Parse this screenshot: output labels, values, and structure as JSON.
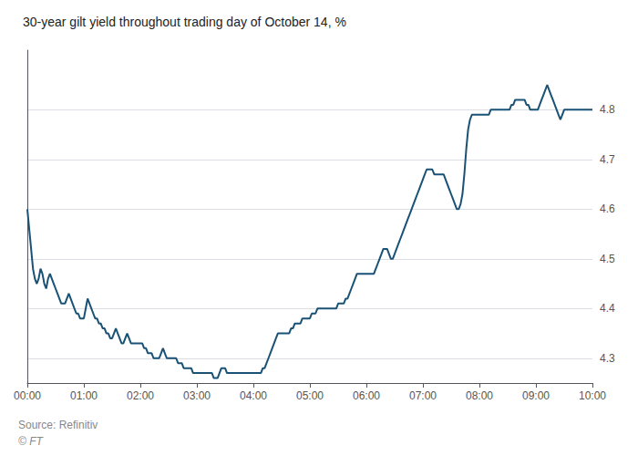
{
  "chart_data": {
    "type": "line",
    "title": "30-year gilt yield throughout trading day of October 14, %",
    "annotations": [
      "Source: Refinitiv",
      "© FT"
    ],
    "color": "#1a5276",
    "grid": true,
    "xlim": [
      0,
      600
    ],
    "xticks": [
      {
        "value": 0,
        "label": "00:00"
      },
      {
        "value": 60,
        "label": "01:00"
      },
      {
        "value": 120,
        "label": "02:00"
      },
      {
        "value": 180,
        "label": "03:00"
      },
      {
        "value": 240,
        "label": "04:00"
      },
      {
        "value": 300,
        "label": "05:00"
      },
      {
        "value": 360,
        "label": "06:00"
      },
      {
        "value": 420,
        "label": "07:00"
      },
      {
        "value": 480,
        "label": "08:00"
      },
      {
        "value": 540,
        "label": "09:00"
      },
      {
        "value": 600,
        "label": "10:00"
      }
    ],
    "ylim": [
      4.25,
      4.92
    ],
    "yticks": [
      4.3,
      4.4,
      4.5,
      4.6,
      4.7,
      4.8
    ],
    "x": [
      0,
      2,
      4,
      6,
      8,
      10,
      12,
      14,
      16,
      18,
      20,
      22,
      24,
      26,
      28,
      30,
      32,
      34,
      36,
      38,
      40,
      42,
      44,
      46,
      48,
      50,
      52,
      54,
      56,
      58,
      60,
      62,
      64,
      66,
      68,
      70,
      72,
      74,
      76,
      78,
      80,
      82,
      84,
      86,
      88,
      90,
      92,
      94,
      96,
      98,
      100,
      102,
      104,
      106,
      108,
      110,
      112,
      114,
      116,
      118,
      120,
      122,
      124,
      126,
      128,
      130,
      132,
      134,
      136,
      138,
      140,
      142,
      144,
      146,
      148,
      150,
      152,
      154,
      156,
      158,
      160,
      162,
      164,
      166,
      168,
      170,
      172,
      174,
      176,
      178,
      180,
      182,
      184,
      186,
      188,
      190,
      192,
      194,
      196,
      198,
      200,
      202,
      204,
      206,
      208,
      210,
      212,
      214,
      216,
      218,
      220,
      222,
      224,
      226,
      228,
      230,
      232,
      234,
      236,
      238,
      240,
      242,
      244,
      246,
      248,
      250,
      252,
      254,
      256,
      258,
      260,
      262,
      264,
      266,
      268,
      270,
      272,
      274,
      276,
      278,
      280,
      282,
      284,
      286,
      288,
      290,
      292,
      294,
      296,
      298,
      300,
      302,
      304,
      306,
      308,
      310,
      312,
      314,
      316,
      318,
      320,
      322,
      324,
      326,
      328,
      330,
      332,
      334,
      336,
      338,
      340,
      342,
      344,
      346,
      348,
      350,
      352,
      354,
      356,
      358,
      360,
      362,
      364,
      366,
      368,
      370,
      372,
      374,
      376,
      378,
      380,
      382,
      384,
      386,
      388,
      390,
      392,
      394,
      396,
      398,
      400,
      402,
      404,
      406,
      408,
      410,
      412,
      414,
      416,
      418,
      420,
      422,
      424,
      426,
      428,
      430,
      432,
      434,
      436,
      438,
      440,
      442,
      444,
      446,
      448,
      450,
      452,
      454,
      456,
      458,
      460,
      462,
      464,
      466,
      468,
      470,
      472,
      474,
      476,
      478,
      480,
      482,
      484,
      486,
      488,
      490,
      492,
      494,
      496,
      498,
      500,
      502,
      504,
      506,
      508,
      510,
      512,
      514,
      516,
      518,
      520,
      522,
      524,
      526,
      528,
      530,
      532,
      534,
      536,
      538,
      540,
      542,
      544,
      546,
      548,
      550,
      552,
      554,
      556,
      558,
      560,
      562,
      564,
      566,
      568,
      570,
      572,
      574,
      576,
      578,
      580,
      582,
      584,
      586,
      588,
      590,
      592,
      594,
      596,
      598,
      600
    ],
    "values": [
      4.6,
      4.56,
      4.52,
      4.48,
      4.46,
      4.45,
      4.46,
      4.48,
      4.47,
      4.45,
      4.44,
      4.46,
      4.47,
      4.46,
      4.45,
      4.44,
      4.43,
      4.42,
      4.41,
      4.41,
      4.41,
      4.42,
      4.43,
      4.42,
      4.41,
      4.4,
      4.39,
      4.39,
      4.38,
      4.38,
      4.38,
      4.4,
      4.42,
      4.41,
      4.4,
      4.39,
      4.38,
      4.38,
      4.37,
      4.37,
      4.36,
      4.36,
      4.35,
      4.35,
      4.34,
      4.34,
      4.35,
      4.36,
      4.35,
      4.34,
      4.33,
      4.33,
      4.34,
      4.35,
      4.34,
      4.33,
      4.33,
      4.33,
      4.33,
      4.33,
      4.33,
      4.33,
      4.32,
      4.32,
      4.31,
      4.31,
      4.31,
      4.3,
      4.3,
      4.3,
      4.3,
      4.31,
      4.32,
      4.31,
      4.3,
      4.3,
      4.3,
      4.3,
      4.3,
      4.3,
      4.29,
      4.29,
      4.29,
      4.28,
      4.28,
      4.28,
      4.28,
      4.28,
      4.27,
      4.27,
      4.27,
      4.27,
      4.27,
      4.27,
      4.27,
      4.27,
      4.27,
      4.27,
      4.27,
      4.26,
      4.26,
      4.26,
      4.27,
      4.28,
      4.28,
      4.28,
      4.27,
      4.27,
      4.27,
      4.27,
      4.27,
      4.27,
      4.27,
      4.27,
      4.27,
      4.27,
      4.27,
      4.27,
      4.27,
      4.27,
      4.27,
      4.27,
      4.27,
      4.27,
      4.27,
      4.28,
      4.28,
      4.29,
      4.3,
      4.31,
      4.32,
      4.33,
      4.34,
      4.35,
      4.35,
      4.35,
      4.35,
      4.35,
      4.35,
      4.35,
      4.36,
      4.36,
      4.37,
      4.37,
      4.37,
      4.37,
      4.38,
      4.38,
      4.38,
      4.38,
      4.38,
      4.39,
      4.39,
      4.39,
      4.4,
      4.4,
      4.4,
      4.4,
      4.4,
      4.4,
      4.4,
      4.4,
      4.4,
      4.4,
      4.4,
      4.41,
      4.41,
      4.41,
      4.41,
      4.42,
      4.42,
      4.43,
      4.44,
      4.45,
      4.46,
      4.47,
      4.47,
      4.47,
      4.47,
      4.47,
      4.47,
      4.47,
      4.47,
      4.47,
      4.47,
      4.48,
      4.49,
      4.5,
      4.51,
      4.52,
      4.52,
      4.52,
      4.51,
      4.5,
      4.5,
      4.51,
      4.52,
      4.53,
      4.54,
      4.55,
      4.56,
      4.57,
      4.58,
      4.59,
      4.6,
      4.61,
      4.62,
      4.63,
      4.64,
      4.65,
      4.66,
      4.67,
      4.68,
      4.68,
      4.68,
      4.68,
      4.67,
      4.67,
      4.67,
      4.67,
      4.67,
      4.67,
      4.66,
      4.65,
      4.64,
      4.63,
      4.62,
      4.61,
      4.6,
      4.6,
      4.61,
      4.63,
      4.67,
      4.72,
      4.76,
      4.78,
      4.79,
      4.79,
      4.79,
      4.79,
      4.79,
      4.79,
      4.79,
      4.79,
      4.79,
      4.79,
      4.8,
      4.8,
      4.8,
      4.8,
      4.8,
      4.8,
      4.8,
      4.8,
      4.8,
      4.8,
      4.8,
      4.81,
      4.81,
      4.82,
      4.82,
      4.82,
      4.82,
      4.82,
      4.82,
      4.81,
      4.81,
      4.8,
      4.8,
      4.8,
      4.8,
      4.8,
      4.81,
      4.82,
      4.83,
      4.84,
      4.85,
      4.84,
      4.83,
      4.82,
      4.81,
      4.8,
      4.79,
      4.78,
      4.79,
      4.8,
      4.8,
      4.8,
      4.8,
      4.8,
      4.8,
      4.8,
      4.8,
      4.8,
      4.8,
      4.8,
      4.8,
      4.8,
      4.8,
      4.8,
      4.8
    ]
  }
}
